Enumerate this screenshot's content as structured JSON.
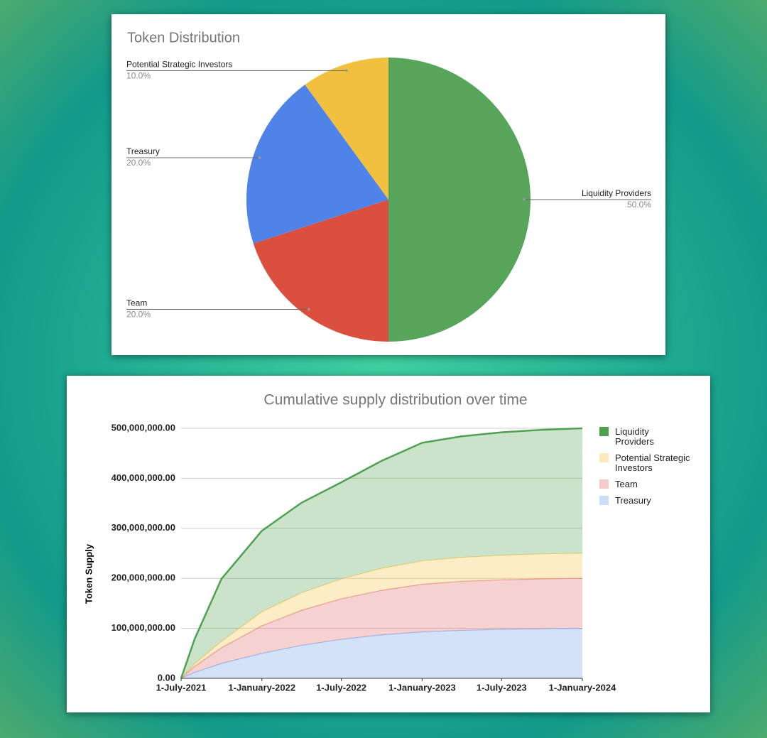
{
  "chart_data": [
    {
      "type": "pie",
      "title": "Token Distribution",
      "categories": [
        "Liquidity Providers",
        "Team",
        "Treasury",
        "Potential Strategic Investors"
      ],
      "values": [
        50,
        20,
        20,
        10
      ],
      "value_labels": [
        "50.0%",
        "20.0%",
        "20.0%",
        "10.0%"
      ],
      "colors": [
        "#57a55a",
        "#db4f3f",
        "#5083e8",
        "#f1c03f"
      ]
    },
    {
      "type": "area",
      "stacked": true,
      "title": "Cumulative supply distribution over time",
      "y_label": "Token Supply",
      "x": [
        "2021-07-01",
        "2021-08-01",
        "2021-10-01",
        "2022-01-01",
        "2022-04-01",
        "2022-07-01",
        "2022-10-01",
        "2023-01-01",
        "2023-04-01",
        "2023-07-01",
        "2023-10-01",
        "2024-01-01"
      ],
      "series": [
        {
          "name": "Treasury",
          "color": "#6d9eeb",
          "values": [
            0,
            12000000,
            30000000,
            50000000,
            66000000,
            78000000,
            87000000,
            93000000,
            96000000,
            98000000,
            99000000,
            100000000
          ]
        },
        {
          "name": "Team",
          "color": "#e06666",
          "values": [
            0,
            12000000,
            31000000,
            55000000,
            70000000,
            81000000,
            89000000,
            95000000,
            98000000,
            99000000,
            100000000,
            100000000
          ]
        },
        {
          "name": "Potential Strategic Investors",
          "color": "#f6c343",
          "values": [
            0,
            5000000,
            13000000,
            28000000,
            35000000,
            40000000,
            44000000,
            47000000,
            48000000,
            49000000,
            50000000,
            50000000
          ]
        },
        {
          "name": "Liquidity Providers",
          "color": "#4ea24f",
          "values": [
            0,
            50000000,
            125000000,
            162000000,
            180000000,
            193000000,
            215000000,
            236000000,
            242000000,
            246000000,
            248000000,
            250000000
          ]
        }
      ],
      "xlim": [
        "2021-07-01",
        "2024-01-01"
      ],
      "xticks": [
        {
          "value": "2021-07-01",
          "label": "1-July-2021"
        },
        {
          "value": "2022-01-01",
          "label": "1-January-2022"
        },
        {
          "value": "2022-07-01",
          "label": "1-July-2022"
        },
        {
          "value": "2023-01-01",
          "label": "1-January-2023"
        },
        {
          "value": "2023-07-01",
          "label": "1-July-2023"
        },
        {
          "value": "2024-01-01",
          "label": "1-January-2024"
        }
      ],
      "ylim": [
        0,
        500000000
      ],
      "yticks": [
        {
          "value": 0,
          "label": "0.00"
        },
        {
          "value": 100000000,
          "label": "100,000,000.00"
        },
        {
          "value": 200000000,
          "label": "200,000,000.00"
        },
        {
          "value": 300000000,
          "label": "300,000,000.00"
        },
        {
          "value": 400000000,
          "label": "400,000,000.00"
        },
        {
          "value": 500000000,
          "label": "500,000,000.00"
        }
      ],
      "grid": true,
      "legend": "right"
    }
  ]
}
